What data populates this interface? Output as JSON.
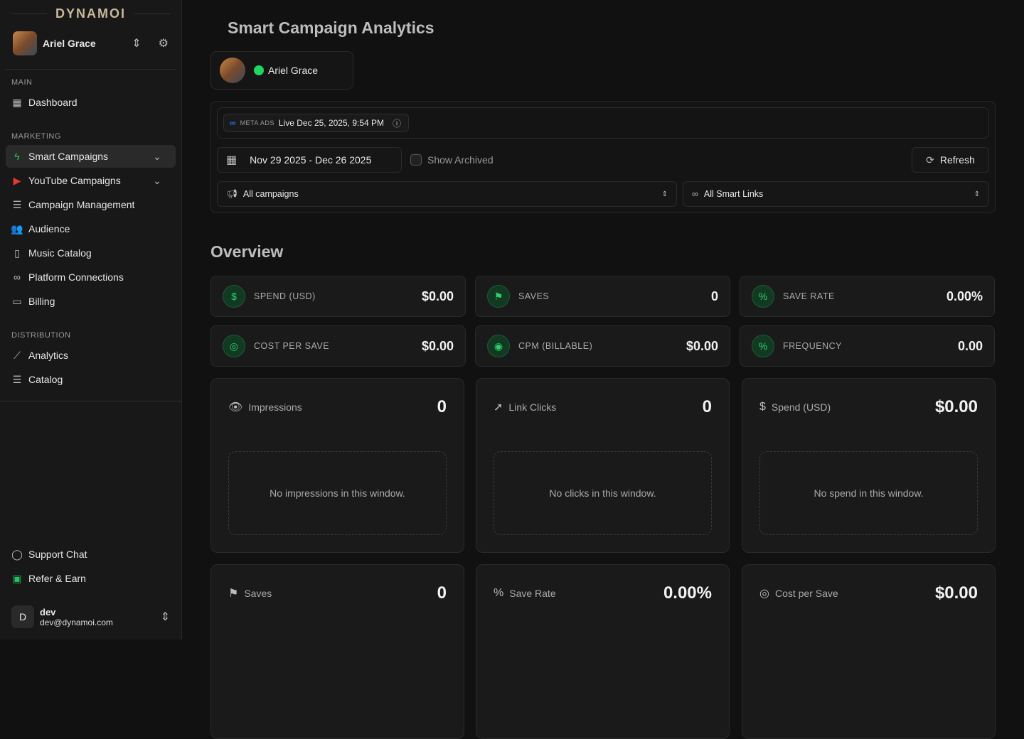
{
  "brand": "DYNAMOI",
  "artist": {
    "name": "Ariel Grace"
  },
  "sidebar": {
    "sections": [
      "MAIN",
      "MARKETING",
      "DISTRIBUTION"
    ],
    "items": [
      {
        "label": "Dashboard"
      },
      {
        "label": "Smart Campaigns"
      },
      {
        "label": "YouTube Campaigns"
      },
      {
        "label": "Campaign Management"
      },
      {
        "label": "Audience"
      },
      {
        "label": "Music Catalog"
      },
      {
        "label": "Platform Connections"
      },
      {
        "label": "Billing"
      },
      {
        "label": "Analytics"
      },
      {
        "label": "Catalog"
      }
    ],
    "footer": [
      {
        "label": "Support Chat"
      },
      {
        "label": "Refer & Earn"
      }
    ],
    "user": {
      "initial": "D",
      "name": "dev",
      "email": "dev@dynamoi.com"
    }
  },
  "page": {
    "title": "Smart Campaign Analytics",
    "overview": "Overview"
  },
  "filters": {
    "meta_label": "META ADS",
    "meta_status": "Live Dec 25, 2025, 9:54 PM",
    "date_range": "Nov 29 2025 - Dec 26 2025",
    "show_archived": "Show Archived",
    "show_archived_checked": false,
    "refresh": "Refresh",
    "campaigns": "All campaigns",
    "smart_links": "All Smart Links"
  },
  "stats": [
    {
      "label": "SPEND (USD)",
      "value": "$0.00"
    },
    {
      "label": "SAVES",
      "value": "0"
    },
    {
      "label": "SAVE RATE",
      "value": "0.00%"
    },
    {
      "label": "COST PER SAVE",
      "value": "$0.00"
    },
    {
      "label": "CPM (BILLABLE)",
      "value": "$0.00"
    },
    {
      "label": "FREQUENCY",
      "value": "0.00"
    }
  ],
  "cards": [
    {
      "label": "Impressions",
      "value": "0",
      "empty": "No impressions in this window."
    },
    {
      "label": "Link Clicks",
      "value": "0",
      "empty": "No clicks in this window."
    },
    {
      "label": "Spend (USD)",
      "value": "$0.00",
      "empty": "No spend in this window."
    },
    {
      "label": "Saves",
      "value": "0"
    },
    {
      "label": "Save Rate",
      "value": "0.00%"
    },
    {
      "label": "Cost per Save",
      "value": "$0.00"
    }
  ]
}
